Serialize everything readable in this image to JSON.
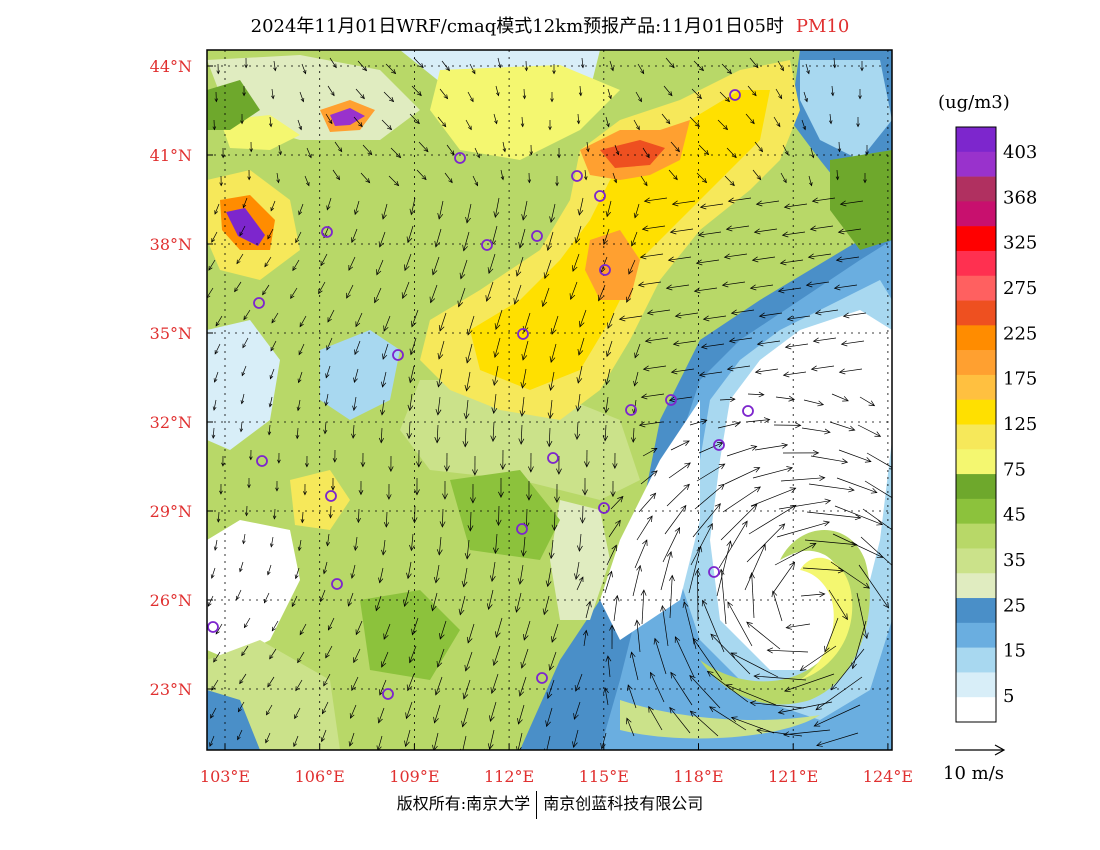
{
  "title": {
    "main": "2024年11月01日WRF/cmaq模式12km预报产品:11月01日05时",
    "pollutant": "PM10"
  },
  "colorbar": {
    "unit": "(ug/m3)",
    "labels": [
      "403",
      "368",
      "325",
      "275",
      "225",
      "175",
      "125",
      "75",
      "45",
      "35",
      "25",
      "15",
      "5"
    ],
    "colors": [
      "#7d26cd",
      "#9932cc",
      "#b03060",
      "#c8106e",
      "#ff0000",
      "#ff3050",
      "#ff6060",
      "#ee5020",
      "#ff8c00",
      "#ffa030",
      "#ffc040",
      "#ffe000",
      "#f6e85a",
      "#f4f770",
      "#6ea82c",
      "#8cc23c",
      "#b8d868",
      "#cbe28a",
      "#e0ecc0",
      "#4a8fc8",
      "#6aaee0",
      "#a8d8f0",
      "#d8eef8",
      "#ffffff"
    ]
  },
  "axes": {
    "lon_ticks": [
      "103°E",
      "106°E",
      "109°E",
      "112°E",
      "115°E",
      "118°E",
      "121°E",
      "124°E"
    ],
    "lat_ticks": [
      "44°N",
      "41°N",
      "38°N",
      "35°N",
      "32°N",
      "29°N",
      "26°N",
      "23°N"
    ]
  },
  "wind_legend": {
    "label": "10 m/s"
  },
  "footer": {
    "left": "版权所有:南京大学",
    "right": "南京创蓝科技有限公司"
  }
}
